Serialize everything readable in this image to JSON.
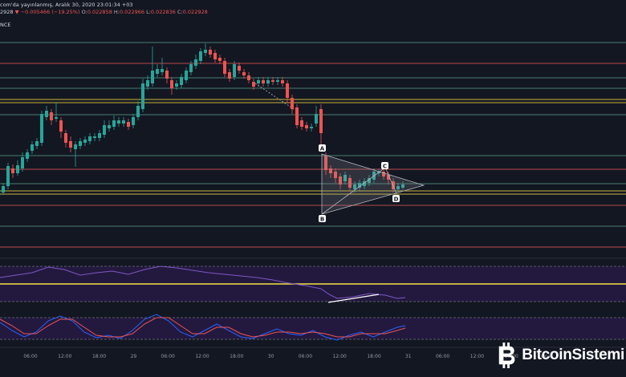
{
  "header": {
    "line1": "com'da yayınlanmış, Aralık 30, 2020 23:01:34 +03",
    "price": "2928",
    "change": "▼ −0.005466 (−19.25%)",
    "o_label": "O:",
    "o_value": "0.022858",
    "h_label": "H:",
    "h_value": "0.022966",
    "l_label": "L:",
    "l_value": "0.022836",
    "c_label": "C:",
    "c_value": "0.022928",
    "line3": "NCE"
  },
  "pattern_points": {
    "a": "A",
    "b": "B",
    "c": "C",
    "d": "D"
  },
  "time_axis": [
    "06:00",
    "12:00",
    "18:00",
    "29",
    "06:00",
    "12:00",
    "18:00",
    "30",
    "06:00",
    "12:00",
    "18:00",
    "31",
    "06:00",
    "12:00",
    "18:00",
    "Oca"
  ],
  "logo": {
    "text": "BitcoinSistemi",
    "icon": "bitcoin-b-icon"
  },
  "colors": {
    "background": "#131722",
    "up": "#26a69a",
    "down": "#ef5350",
    "yellow_level": "#f5e342",
    "indicator_band": "#2a1b4a",
    "pattern_fill": "#9598a1"
  }
}
